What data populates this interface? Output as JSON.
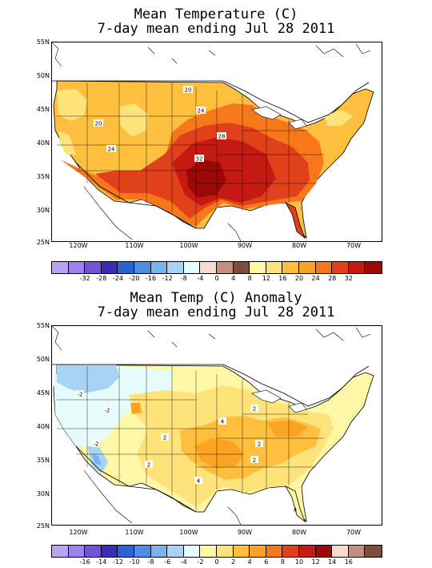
{
  "map1": {
    "title_line1": "Mean Temperature (C)",
    "title_line2": "7-day mean ending Jul 28 2011",
    "lat_labels": [
      "55N",
      "50N",
      "45N",
      "40N",
      "35N",
      "30N",
      "25N"
    ],
    "lon_labels": [
      "120W",
      "110W",
      "100W",
      "90W",
      "80W",
      "70W"
    ],
    "contour_labels": [
      "20",
      "24",
      "28",
      "32",
      "20",
      "24"
    ],
    "colorbar": {
      "colors": [
        "#b9a3f4",
        "#9b82ec",
        "#6f55d6",
        "#3c2ab8",
        "#2a62d6",
        "#4a8ee8",
        "#78b4f0",
        "#a9d3f4",
        "#e6fbfb",
        "#f6dccf",
        "#c29080",
        "#7a4d3d",
        "#fdf7a6",
        "#fee27a",
        "#fdbf3d",
        "#fca323",
        "#f7781a",
        "#e0401a",
        "#c51a12",
        "#9b0808"
      ],
      "labels": [
        "-32",
        "-28",
        "-24",
        "-20",
        "-16",
        "-12",
        "-8",
        "-4",
        "0",
        "4",
        "8",
        "12",
        "16",
        "20",
        "24",
        "28",
        "32"
      ],
      "palette_notes": {
        "c16": "#fee27a",
        "c20": "#fdbf3d",
        "c24": "#fca323",
        "c28": "#f7781a",
        "c32": "#e0401a",
        "c34": "#c51a12",
        "c36": "#9b0808"
      }
    }
  },
  "map2": {
    "title_line1": "Mean Temp (C) Anomaly",
    "title_line2": "7-day mean ending Jul 28 2011",
    "lat_labels": [
      "55N",
      "50N",
      "45N",
      "40N",
      "35N",
      "30N",
      "25N"
    ],
    "lon_labels": [
      "120W",
      "110W",
      "100W",
      "90W",
      "80W",
      "70W"
    ],
    "contour_labels": [
      "-2",
      "-2",
      "-2",
      "2",
      "4",
      "2",
      "2",
      "4",
      "2",
      "2",
      "4"
    ],
    "colorbar": {
      "colors": [
        "#b9a3f4",
        "#9b82ec",
        "#6f55d6",
        "#3c2ab8",
        "#2a62d6",
        "#4a8ee8",
        "#78b4f0",
        "#a9d3f4",
        "#e6fbfb",
        "#fdf7a6",
        "#fee27a",
        "#fdbf3d",
        "#fca323",
        "#f7781a",
        "#e0401a",
        "#c51a12",
        "#9b0808",
        "#f6dccf",
        "#c29080",
        "#7a4d3d"
      ],
      "labels": [
        "-16",
        "-14",
        "-12",
        "-10",
        "-8",
        "-6",
        "-4",
        "-2",
        "0",
        "2",
        "4",
        "6",
        "8",
        "10",
        "12",
        "14",
        "16"
      ]
    }
  }
}
